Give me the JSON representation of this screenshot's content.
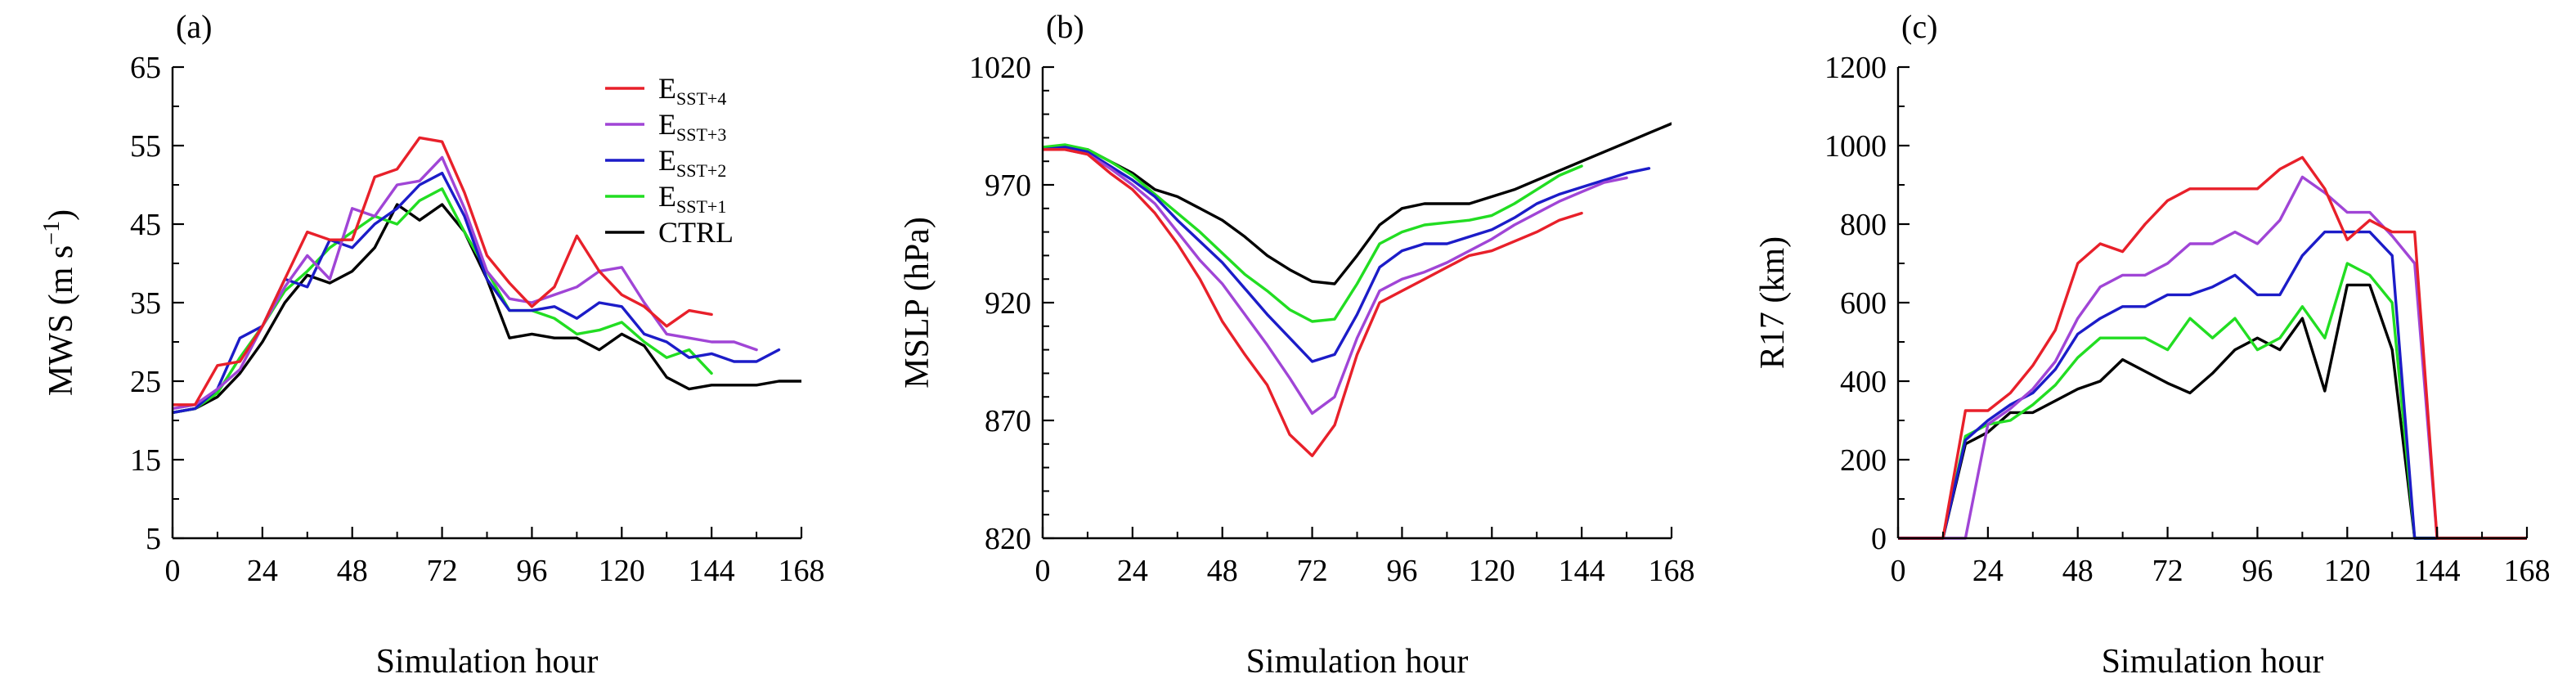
{
  "chart_data": [
    {
      "type": "line",
      "panel_label": "(a)",
      "xlabel": "Simulation hour",
      "ylabel": "MWS (m s⁻¹)",
      "ylabel_main": "MWS (m s",
      "ylabel_sup": "−1",
      "ylabel_close": ")",
      "xlim": [
        0,
        168
      ],
      "ylim": [
        5,
        65
      ],
      "xticks": [
        0,
        24,
        48,
        72,
        96,
        120,
        144,
        168
      ],
      "yticks": [
        5,
        15,
        25,
        35,
        45,
        55,
        65
      ],
      "yminor": 2,
      "legend": "top-right",
      "series": [
        {
          "name": "ESST+4",
          "color": "#e8202a",
          "x": [
            0,
            6,
            12,
            18,
            24,
            30,
            36,
            42,
            48,
            54,
            60,
            66,
            72,
            78,
            84,
            90,
            96,
            102,
            108,
            114,
            120,
            126,
            132,
            138,
            144
          ],
          "y": [
            22,
            22,
            27,
            27.5,
            32,
            38,
            44,
            43,
            43,
            51,
            52,
            56,
            55.5,
            49,
            41,
            37.5,
            34.5,
            37,
            43.5,
            39,
            36,
            34.5,
            32,
            34,
            33.5
          ]
        },
        {
          "name": "ESST+3",
          "color": "#a045d6",
          "x": [
            0,
            6,
            12,
            18,
            24,
            30,
            36,
            42,
            48,
            54,
            60,
            66,
            72,
            78,
            84,
            90,
            96,
            102,
            108,
            114,
            120,
            126,
            132,
            138,
            144,
            150,
            156
          ],
          "y": [
            21.5,
            22,
            24,
            26.5,
            32,
            37,
            41,
            38,
            47,
            46,
            50,
            50.5,
            53.5,
            47,
            39,
            35.5,
            35,
            36,
            37,
            39,
            39.5,
            35,
            31,
            30.5,
            30,
            30,
            29
          ]
        },
        {
          "name": "ESST+2",
          "color": "#1c1cc8",
          "x": [
            0,
            6,
            12,
            18,
            24,
            30,
            36,
            42,
            48,
            54,
            60,
            66,
            72,
            78,
            84,
            90,
            96,
            102,
            108,
            114,
            120,
            126,
            132,
            138,
            144,
            150,
            156,
            162
          ],
          "y": [
            21,
            21.5,
            24,
            30.5,
            32,
            38,
            37,
            43,
            42,
            45,
            47,
            50,
            51.5,
            46,
            38,
            34,
            34,
            34.5,
            33,
            35,
            34.5,
            31,
            30,
            28,
            28.5,
            27.5,
            27.5,
            29
          ]
        },
        {
          "name": "ESST+1",
          "color": "#22dd22",
          "x": [
            0,
            6,
            12,
            18,
            24,
            30,
            36,
            42,
            48,
            54,
            60,
            66,
            72,
            78,
            84,
            90,
            96,
            102,
            108,
            114,
            120,
            126,
            132,
            138,
            144
          ],
          "y": [
            21,
            21.5,
            23.5,
            28,
            32,
            36.5,
            39,
            42,
            44,
            46,
            45,
            48,
            49.5,
            44,
            39,
            34,
            34,
            33,
            31,
            31.5,
            32.5,
            30,
            28,
            29,
            26
          ]
        },
        {
          "name": "CTRL",
          "color": "#000000",
          "x": [
            0,
            6,
            12,
            18,
            24,
            30,
            36,
            42,
            48,
            54,
            60,
            66,
            72,
            78,
            84,
            90,
            96,
            102,
            108,
            114,
            120,
            126,
            132,
            138,
            144,
            150,
            156,
            162,
            168
          ],
          "y": [
            21,
            21.5,
            23,
            26,
            30,
            35,
            38.5,
            37.5,
            39,
            42,
            47.5,
            45.5,
            47.5,
            44,
            38,
            30.5,
            31,
            30.5,
            30.5,
            29,
            31,
            29.5,
            25.5,
            24,
            24.5,
            24.5,
            24.5,
            25,
            25
          ]
        }
      ]
    },
    {
      "type": "line",
      "panel_label": "(b)",
      "xlabel": "Simulation hour",
      "ylabel": "MSLP (hPa)",
      "xlim": [
        0,
        168
      ],
      "ylim": [
        820,
        1020
      ],
      "xticks": [
        0,
        24,
        48,
        72,
        96,
        120,
        144,
        168
      ],
      "yticks": [
        820,
        870,
        920,
        970,
        1020
      ],
      "yminor": 5,
      "series": [
        {
          "name": "ESST+4",
          "color": "#e8202a",
          "x": [
            0,
            6,
            12,
            18,
            24,
            30,
            36,
            42,
            48,
            54,
            60,
            66,
            72,
            78,
            84,
            90,
            96,
            102,
            108,
            114,
            120,
            126,
            132,
            138,
            144
          ],
          "y": [
            985,
            985,
            983,
            975,
            968,
            958,
            945,
            930,
            912,
            898,
            885,
            864,
            855,
            868,
            898,
            920,
            925,
            930,
            935,
            940,
            942,
            946,
            950,
            955,
            958
          ]
        },
        {
          "name": "ESST+3",
          "color": "#a045d6",
          "x": [
            0,
            6,
            12,
            18,
            24,
            30,
            36,
            42,
            48,
            54,
            60,
            66,
            72,
            78,
            84,
            90,
            96,
            102,
            108,
            114,
            120,
            126,
            132,
            138,
            144,
            150,
            156
          ],
          "y": [
            985,
            985,
            983,
            977,
            970,
            962,
            950,
            938,
            928,
            915,
            902,
            888,
            873,
            880,
            905,
            925,
            930,
            933,
            937,
            942,
            947,
            953,
            958,
            963,
            967,
            971,
            973
          ]
        },
        {
          "name": "ESST+2",
          "color": "#1c1cc8",
          "x": [
            0,
            6,
            12,
            18,
            24,
            30,
            36,
            42,
            48,
            54,
            60,
            66,
            72,
            78,
            84,
            90,
            96,
            102,
            108,
            114,
            120,
            126,
            132,
            138,
            144,
            150,
            156,
            162
          ],
          "y": [
            985,
            986,
            984,
            978,
            972,
            965,
            955,
            946,
            937,
            926,
            915,
            905,
            895,
            898,
            915,
            935,
            942,
            945,
            945,
            948,
            951,
            956,
            962,
            966,
            969,
            972,
            975,
            977
          ]
        },
        {
          "name": "ESST+1",
          "color": "#22dd22",
          "x": [
            0,
            6,
            12,
            18,
            24,
            30,
            36,
            42,
            48,
            54,
            60,
            66,
            72,
            78,
            84,
            90,
            96,
            102,
            108,
            114,
            120,
            126,
            132,
            138,
            144
          ],
          "y": [
            986,
            987,
            985,
            980,
            974,
            966,
            958,
            950,
            941,
            932,
            925,
            917,
            912,
            913,
            928,
            945,
            950,
            953,
            954,
            955,
            957,
            962,
            968,
            974,
            978
          ]
        },
        {
          "name": "CTRL",
          "color": "#000000",
          "x": [
            0,
            6,
            12,
            18,
            24,
            30,
            36,
            42,
            48,
            54,
            60,
            66,
            72,
            78,
            84,
            90,
            96,
            102,
            108,
            114,
            120,
            126,
            132,
            138,
            144,
            150,
            156,
            162,
            168
          ],
          "y": [
            985,
            986,
            985,
            980,
            975,
            968,
            965,
            960,
            955,
            948,
            940,
            934,
            929,
            928,
            940,
            953,
            960,
            962,
            962,
            962,
            965,
            968,
            972,
            976,
            980,
            984,
            988,
            992,
            996
          ]
        }
      ]
    },
    {
      "type": "line",
      "panel_label": "(c)",
      "xlabel": "Simulation hour",
      "ylabel": "R17 (km)",
      "xlim": [
        0,
        168
      ],
      "ylim": [
        0,
        1200
      ],
      "xticks": [
        0,
        24,
        48,
        72,
        96,
        120,
        144,
        168
      ],
      "yticks": [
        0,
        200,
        400,
        600,
        800,
        1000,
        1200
      ],
      "yminor": 2,
      "series": [
        {
          "name": "ESST+4",
          "color": "#e8202a",
          "x": [
            0,
            12,
            18,
            24,
            30,
            36,
            42,
            48,
            54,
            60,
            66,
            72,
            78,
            84,
            90,
            96,
            102,
            108,
            114,
            120,
            126,
            132,
            138,
            144,
            168
          ],
          "y": [
            0,
            0,
            325,
            325,
            370,
            440,
            530,
            700,
            750,
            730,
            800,
            860,
            890,
            890,
            890,
            890,
            940,
            970,
            890,
            760,
            810,
            780,
            780,
            0,
            0
          ]
        },
        {
          "name": "ESST+3",
          "color": "#a045d6",
          "x": [
            0,
            18,
            24,
            30,
            36,
            42,
            48,
            54,
            60,
            66,
            72,
            78,
            84,
            90,
            96,
            102,
            108,
            114,
            120,
            126,
            132,
            138,
            144
          ],
          "y": [
            0,
            0,
            290,
            330,
            380,
            450,
            560,
            640,
            670,
            670,
            700,
            750,
            750,
            780,
            750,
            810,
            920,
            880,
            830,
            830,
            770,
            700,
            0
          ]
        },
        {
          "name": "ESST+2",
          "color": "#1c1cc8",
          "x": [
            0,
            12,
            18,
            24,
            30,
            36,
            42,
            48,
            54,
            60,
            66,
            72,
            78,
            84,
            90,
            96,
            102,
            108,
            114,
            120,
            126,
            132,
            138,
            144
          ],
          "y": [
            0,
            0,
            250,
            300,
            340,
            370,
            430,
            520,
            560,
            590,
            590,
            620,
            620,
            640,
            670,
            620,
            620,
            720,
            780,
            780,
            780,
            720,
            0,
            0
          ]
        },
        {
          "name": "ESST+1",
          "color": "#22dd22",
          "x": [
            0,
            12,
            18,
            24,
            30,
            36,
            42,
            48,
            54,
            60,
            66,
            72,
            78,
            84,
            90,
            96,
            102,
            108,
            114,
            120,
            126,
            132,
            138,
            144
          ],
          "y": [
            0,
            0,
            260,
            290,
            300,
            340,
            390,
            460,
            510,
            510,
            510,
            480,
            560,
            510,
            560,
            480,
            510,
            590,
            510,
            700,
            670,
            600,
            0,
            0
          ]
        },
        {
          "name": "CTRL",
          "color": "#000000",
          "x": [
            0,
            12,
            18,
            24,
            30,
            36,
            42,
            48,
            54,
            60,
            66,
            72,
            78,
            84,
            90,
            96,
            102,
            108,
            114,
            120,
            126,
            132,
            138,
            144,
            168
          ],
          "y": [
            0,
            0,
            240,
            270,
            320,
            320,
            350,
            380,
            400,
            455,
            425,
            395,
            370,
            420,
            480,
            510,
            480,
            560,
            375,
            645,
            645,
            480,
            0,
            0,
            0
          ]
        }
      ]
    }
  ],
  "legend_entries": [
    {
      "base": "E",
      "sub": "SST+4",
      "color": "#e8202a"
    },
    {
      "base": "E",
      "sub": "SST+3",
      "color": "#a045d6"
    },
    {
      "base": "E",
      "sub": "SST+2",
      "color": "#1c1cc8"
    },
    {
      "base": "E",
      "sub": "SST+1",
      "color": "#22dd22"
    },
    {
      "base": "CTRL",
      "sub": "",
      "color": "#000000"
    }
  ]
}
